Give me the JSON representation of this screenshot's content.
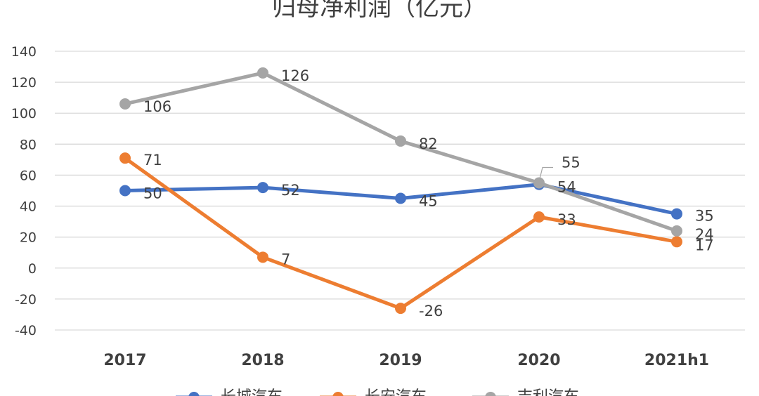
{
  "chart_data": {
    "type": "line",
    "title": "归母净利润（亿元）",
    "categories": [
      "2017",
      "2018",
      "2019",
      "2020",
      "2021h1"
    ],
    "ylim": [
      -40,
      140
    ],
    "yticks": [
      -40,
      -20,
      0,
      20,
      40,
      60,
      80,
      100,
      120,
      140
    ],
    "grid": true,
    "legend_position": "bottom",
    "series": [
      {
        "name": "长城汽车",
        "color": "#4472C4",
        "values": [
          50,
          52,
          45,
          54,
          35
        ]
      },
      {
        "name": "长安汽车",
        "color": "#ED7D31",
        "values": [
          71,
          7,
          -26,
          33,
          17
        ]
      },
      {
        "name": "吉利汽车",
        "color": "#A5A5A5",
        "values": [
          106,
          126,
          82,
          55,
          24
        ]
      }
    ]
  }
}
